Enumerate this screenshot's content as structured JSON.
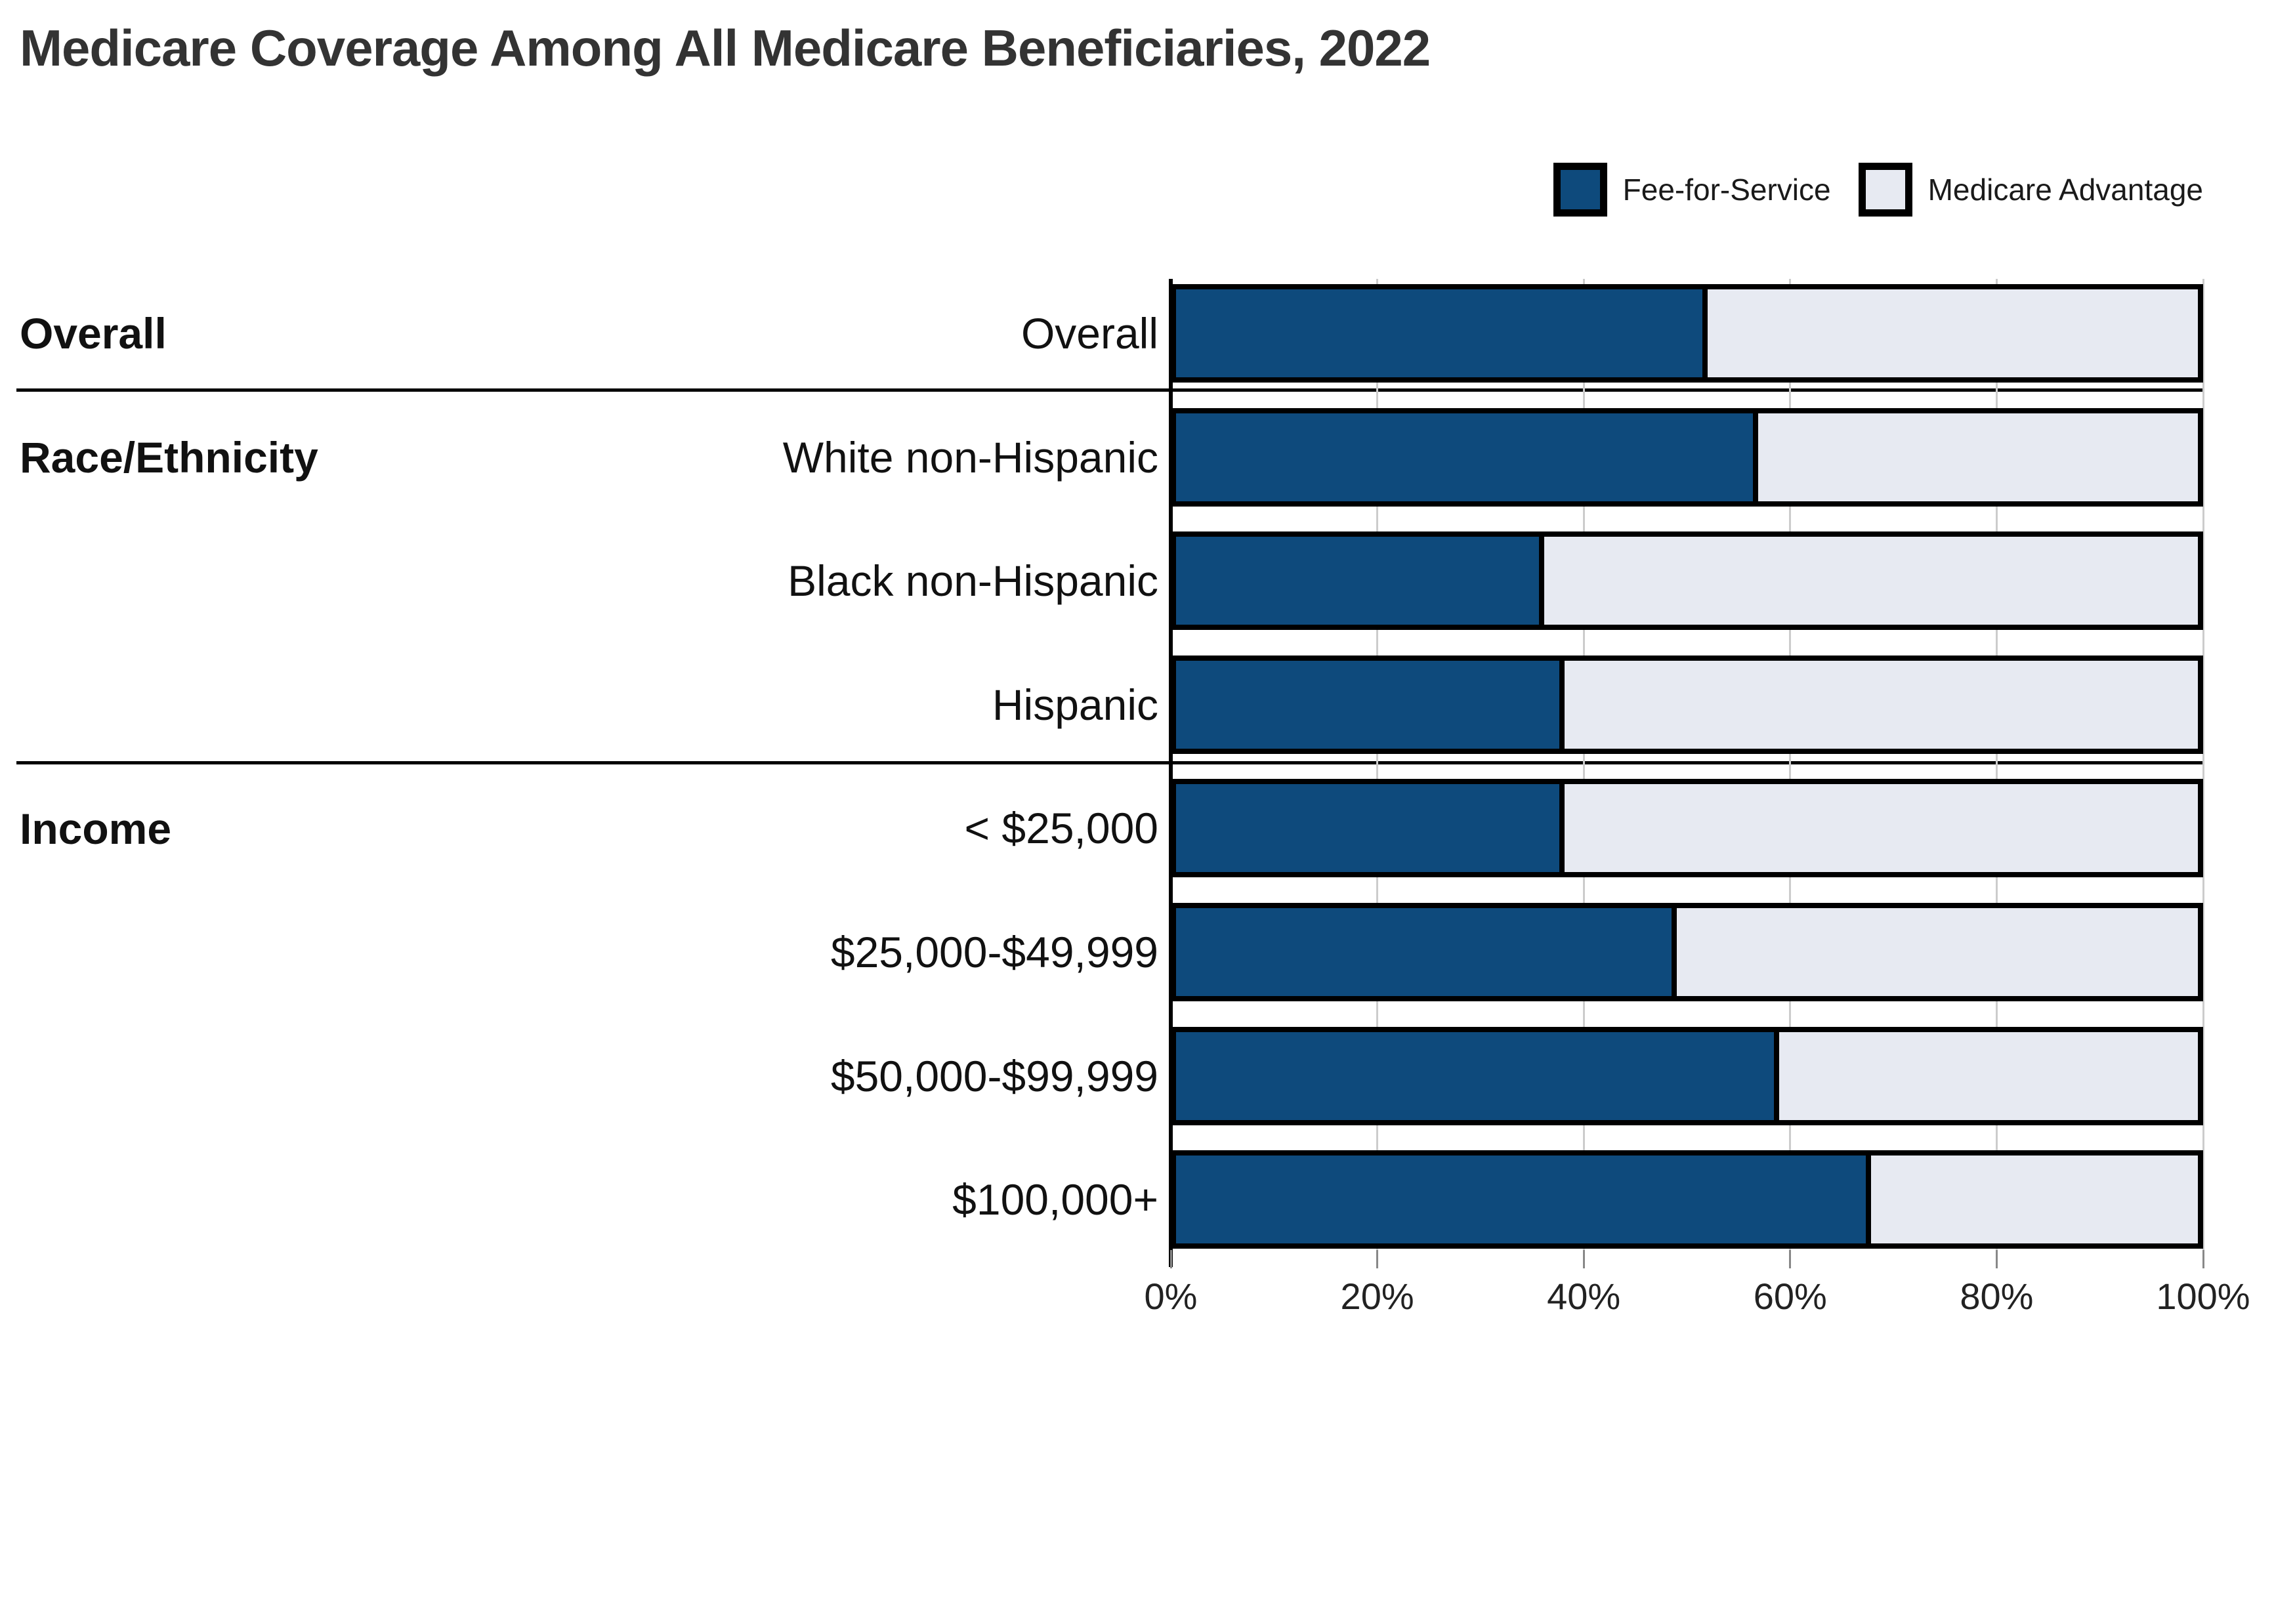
{
  "title": "Medicare Coverage Among All Medicare Beneficiaries, 2022",
  "legend": {
    "items": [
      {
        "label": "Fee-for-Service",
        "color": "#0E4A7C"
      },
      {
        "label": "Medicare Advantage",
        "color": "#E7EAF2"
      }
    ]
  },
  "groups": [
    {
      "label": "Overall"
    },
    {
      "label": "Race/Ethnicity"
    },
    {
      "label": "Income"
    }
  ],
  "colors": {
    "fee_for_service": "#0E4A7C",
    "medicare_advantage": "#E7EAF2",
    "bar_border": "#000000",
    "gridline": "#cccccc",
    "title_text": "#333333"
  },
  "chart_data": {
    "type": "bar",
    "orientation": "horizontal",
    "stacked": true,
    "title": "Medicare Coverage Among All Medicare Beneficiaries, 2022",
    "categories": [
      "Overall",
      "White non-Hispanic",
      "Black non-Hispanic",
      "Hispanic",
      "< $25,000",
      "$25,000-$49,999",
      "$50,000-$99,999",
      "$100,000+"
    ],
    "category_groups": [
      {
        "label": "Overall",
        "categories": [
          "Overall"
        ]
      },
      {
        "label": "Race/Ethnicity",
        "categories": [
          "White non-Hispanic",
          "Black non-Hispanic",
          "Hispanic"
        ]
      },
      {
        "label": "Income",
        "categories": [
          "< $25,000",
          "$25,000-$49,999",
          "$50,000-$99,999",
          "$100,000+"
        ]
      }
    ],
    "series": [
      {
        "name": "Fee-for-Service",
        "color": "#0E4A7C",
        "values": [
          52,
          57,
          36,
          38,
          38,
          49,
          59,
          68
        ]
      },
      {
        "name": "Medicare Advantage",
        "color": "#E7EAF2",
        "values": [
          48,
          43,
          64,
          62,
          62,
          51,
          41,
          32
        ]
      }
    ],
    "xlabel": "",
    "ylabel": "",
    "xlim": [
      0,
      100
    ],
    "x_ticks": [
      0,
      20,
      40,
      60,
      80,
      100
    ],
    "x_tick_labels": [
      "0%",
      "20%",
      "40%",
      "60%",
      "80%",
      "100%"
    ],
    "grid": true,
    "legend_position": "top-right",
    "group_dividers_after_categories": [
      "Overall",
      "Hispanic"
    ]
  }
}
